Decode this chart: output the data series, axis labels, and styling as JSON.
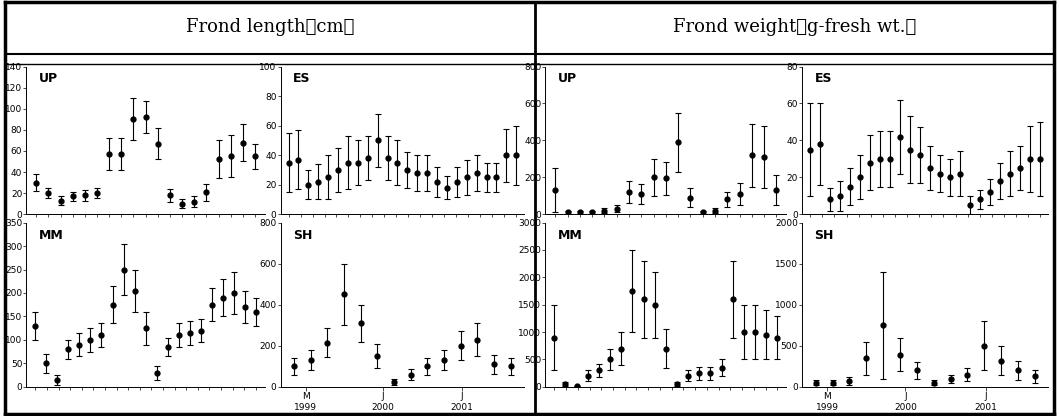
{
  "title_left": "Frond length（cm）",
  "title_right": "Frond weight（g-fresh wt.）",
  "UP_len": {
    "label": "UP",
    "ylim": [
      0,
      140
    ],
    "yticks": [
      0,
      20,
      40,
      60,
      80,
      100,
      120,
      140
    ],
    "y": [
      30,
      20,
      13,
      17,
      18,
      20,
      57,
      57,
      90,
      92,
      67,
      18,
      10,
      12,
      21,
      52,
      55,
      68,
      55
    ],
    "yerr": [
      8,
      5,
      4,
      4,
      5,
      5,
      15,
      15,
      20,
      15,
      15,
      6,
      4,
      5,
      8,
      18,
      20,
      18,
      12
    ]
  },
  "ES_len": {
    "label": "ES",
    "ylim": [
      0,
      100
    ],
    "yticks": [
      0,
      20,
      40,
      60,
      80,
      100
    ],
    "y": [
      35,
      37,
      20,
      22,
      25,
      30,
      35,
      35,
      38,
      50,
      38,
      35,
      30,
      28,
      28,
      22,
      18,
      22,
      25,
      28,
      25,
      25,
      40,
      40
    ],
    "yerr": [
      20,
      20,
      10,
      12,
      15,
      15,
      18,
      15,
      15,
      18,
      15,
      15,
      12,
      12,
      12,
      10,
      8,
      10,
      12,
      12,
      10,
      10,
      18,
      20
    ]
  },
  "MM_len": {
    "label": "MM",
    "ylim": [
      0,
      350
    ],
    "yticks": [
      0,
      50,
      100,
      150,
      200,
      250,
      300,
      350
    ],
    "y": [
      130,
      50,
      15,
      80,
      90,
      100,
      110,
      175,
      250,
      205,
      125,
      30,
      85,
      110,
      115,
      120,
      175,
      190,
      200,
      170,
      160
    ],
    "yerr": [
      30,
      20,
      10,
      20,
      25,
      25,
      25,
      40,
      55,
      45,
      35,
      15,
      20,
      25,
      25,
      25,
      35,
      40,
      45,
      35,
      30
    ]
  },
  "SH_len": {
    "label": "SH",
    "ylim": [
      0,
      800
    ],
    "yticks": [
      0,
      200,
      400,
      600,
      800
    ],
    "y": [
      100,
      130,
      215,
      450,
      310,
      150,
      25,
      60,
      100,
      130,
      200,
      230,
      110,
      100
    ],
    "yerr": [
      40,
      50,
      70,
      150,
      90,
      60,
      15,
      25,
      40,
      50,
      70,
      80,
      45,
      40
    ]
  },
  "UP_wt": {
    "label": "UP",
    "ylim": [
      0,
      800
    ],
    "yticks": [
      0,
      200,
      400,
      600,
      800
    ],
    "y": [
      130,
      10,
      10,
      10,
      20,
      30,
      120,
      110,
      200,
      195,
      390,
      90,
      10,
      20,
      80,
      110,
      320,
      310,
      130
    ],
    "yerr": [
      120,
      10,
      10,
      10,
      15,
      20,
      60,
      55,
      100,
      90,
      160,
      50,
      10,
      15,
      40,
      60,
      170,
      170,
      80
    ]
  },
  "ES_wt": {
    "label": "ES",
    "ylim": [
      0,
      80
    ],
    "yticks": [
      0,
      20,
      40,
      60,
      80
    ],
    "y": [
      35,
      38,
      8,
      10,
      15,
      20,
      28,
      30,
      30,
      42,
      35,
      32,
      25,
      22,
      20,
      22,
      5,
      8,
      12,
      18,
      22,
      25,
      30,
      30
    ],
    "yerr": [
      25,
      22,
      6,
      8,
      10,
      12,
      15,
      15,
      15,
      20,
      18,
      15,
      12,
      10,
      10,
      12,
      5,
      5,
      7,
      10,
      12,
      12,
      18,
      20
    ]
  },
  "MM_wt": {
    "label": "MM",
    "ylim": [
      0,
      3000
    ],
    "yticks": [
      0,
      500,
      1000,
      1500,
      2000,
      2500,
      3000
    ],
    "y": [
      900,
      50,
      10,
      200,
      300,
      500,
      700,
      1750,
      1600,
      1500,
      700,
      50,
      200,
      250,
      250,
      350,
      1600,
      1000,
      1000,
      950,
      900
    ],
    "yerr": [
      600,
      30,
      10,
      100,
      120,
      200,
      300,
      750,
      700,
      600,
      350,
      30,
      100,
      120,
      120,
      150,
      700,
      500,
      500,
      450,
      400
    ]
  },
  "SH_wt": {
    "label": "SH",
    "ylim": [
      0,
      2000
    ],
    "yticks": [
      0,
      500,
      1000,
      1500,
      2000
    ],
    "y": [
      50,
      50,
      75,
      350,
      750,
      390,
      200,
      50,
      100,
      150,
      500,
      320,
      200,
      130
    ],
    "yerr": [
      30,
      30,
      50,
      200,
      650,
      200,
      100,
      30,
      50,
      80,
      300,
      180,
      120,
      80
    ]
  },
  "marker_color": "#000000",
  "marker_size": 3.5,
  "line_width": 0.8,
  "capsize": 2,
  "elinewidth": 0.8
}
